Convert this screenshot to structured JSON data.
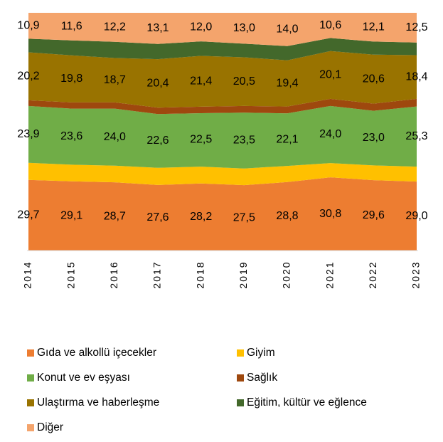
{
  "chart_data": {
    "type": "area",
    "categories": [
      "2014",
      "2015",
      "2016",
      "2017",
      "2018",
      "2019",
      "2020",
      "2021",
      "2022",
      "2023"
    ],
    "series": [
      {
        "name": "Gıda ve alkollü içecekler",
        "color": "#ed7d31",
        "values": [
          29.7,
          29.1,
          28.7,
          27.6,
          28.2,
          27.5,
          28.8,
          30.8,
          29.6,
          29.0
        ],
        "value_labels": [
          "29,7",
          "29,1",
          "28,7",
          "27,6",
          "28,2",
          "27,5",
          "28,8",
          "30,8",
          "29,6",
          "29,0"
        ]
      },
      {
        "name": "Giyim",
        "color": "#ffc000",
        "values": [
          7.2,
          7.0,
          7.0,
          7.2,
          7.1,
          7.0,
          6.8,
          6.0,
          6.2,
          6.3
        ]
      },
      {
        "name": "Konut ve ev eşyası",
        "color": "#70ad47",
        "values": [
          23.9,
          23.6,
          24.0,
          22.6,
          22.5,
          23.5,
          22.1,
          24.0,
          23.0,
          25.3
        ],
        "value_labels": [
          "23,9",
          "23,6",
          "24,0",
          "22,6",
          "22,5",
          "23,5",
          "22,1",
          "24,0",
          "23,0",
          "25,3"
        ]
      },
      {
        "name": "Sağlık",
        "color": "#9e480e",
        "values": [
          2.4,
          2.6,
          2.6,
          2.7,
          2.7,
          2.8,
          2.9,
          3.0,
          3.0,
          3.2
        ]
      },
      {
        "name": "Ulaştırma ve haberleşme",
        "color": "#997300",
        "values": [
          20.2,
          19.8,
          18.7,
          20.4,
          21.4,
          20.5,
          19.4,
          20.1,
          20.6,
          18.4
        ],
        "value_labels": [
          "20,2",
          "19,8",
          "18,7",
          "20,4",
          "21,4",
          "20,5",
          "19,4",
          "20,1",
          "20,6",
          "18,4"
        ]
      },
      {
        "name": "Eğitim, kültür ve eğlence",
        "color": "#43682b",
        "values": [
          5.7,
          6.3,
          6.8,
          6.4,
          6.1,
          5.7,
          6.0,
          5.5,
          5.5,
          5.3
        ]
      },
      {
        "name": "Diğer",
        "color": "#f4a46c",
        "values": [
          10.9,
          11.6,
          12.2,
          13.1,
          12.0,
          13.0,
          14.0,
          10.6,
          12.1,
          12.5
        ],
        "value_labels": [
          "10,9",
          "11,6",
          "12,2",
          "13,1",
          "12,0",
          "13,0",
          "14,0",
          "10,6",
          "12,1",
          "12,5"
        ]
      }
    ]
  }
}
